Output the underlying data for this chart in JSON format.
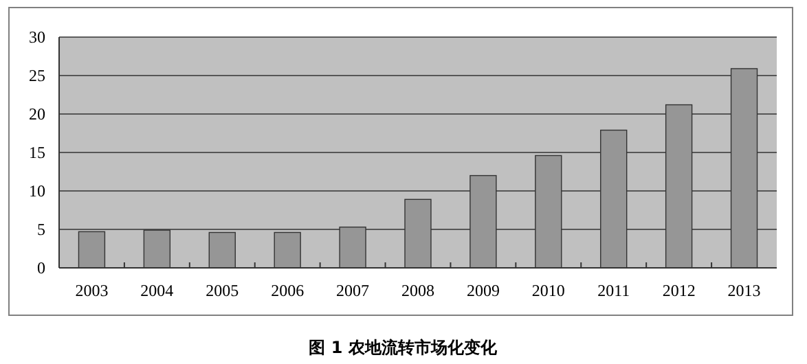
{
  "chart_data": {
    "type": "bar",
    "title": "图 1   农地流转市场化变化",
    "categories": [
      "2003",
      "2004",
      "2005",
      "2006",
      "2007",
      "2008",
      "2009",
      "2010",
      "2011",
      "2012",
      "2013"
    ],
    "values": [
      4.7,
      4.9,
      4.6,
      4.6,
      5.3,
      8.9,
      12.0,
      14.6,
      17.9,
      21.2,
      25.9
    ],
    "color": "#969696",
    "ylim": [
      0,
      30
    ],
    "yticks": [
      0,
      5,
      10,
      15,
      20,
      25,
      30
    ],
    "grid": "y"
  }
}
